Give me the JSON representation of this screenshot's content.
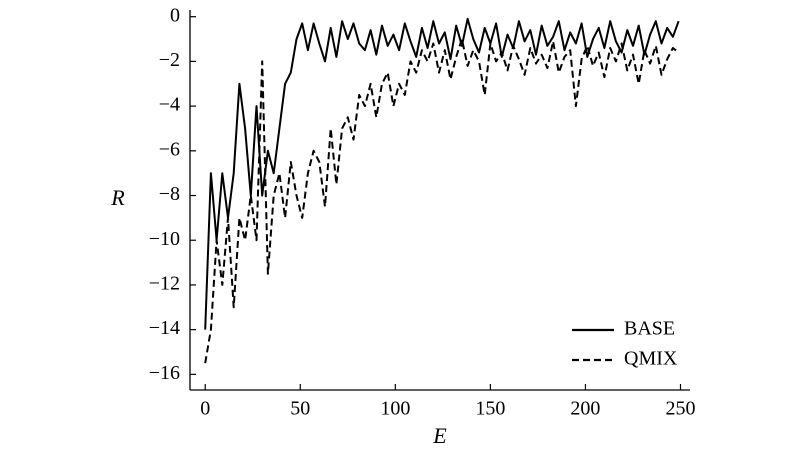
{
  "chart_data": {
    "type": "line",
    "xlabel": "E",
    "ylabel": "R",
    "x": [
      0,
      3,
      6,
      9,
      12,
      15,
      18,
      21,
      24,
      27,
      30,
      33,
      36,
      39,
      42,
      45,
      48,
      51,
      54,
      57,
      60,
      63,
      66,
      69,
      72,
      75,
      78,
      81,
      84,
      87,
      90,
      93,
      96,
      99,
      102,
      105,
      108,
      111,
      114,
      117,
      120,
      123,
      126,
      129,
      132,
      135,
      138,
      141,
      144,
      147,
      150,
      153,
      156,
      159,
      162,
      165,
      168,
      171,
      174,
      177,
      180,
      183,
      186,
      189,
      192,
      195,
      198,
      201,
      204,
      207,
      210,
      213,
      216,
      219,
      222,
      225,
      228,
      231,
      234,
      237,
      240,
      243,
      246,
      249
    ],
    "series": [
      {
        "name": "BASE",
        "color": "#000000",
        "dash": "solid",
        "values": [
          -14,
          -7,
          -10,
          -7,
          -9,
          -7,
          -3,
          -5,
          -8,
          -4,
          -8,
          -6,
          -7,
          -5,
          -3,
          -2.5,
          -1,
          -0.3,
          -1.5,
          -0.3,
          -1.2,
          -2,
          -0.5,
          -1.8,
          -0.2,
          -1,
          -0.3,
          -1.2,
          -1.5,
          -0.6,
          -1.7,
          -0.4,
          -1.3,
          -0.8,
          -1.5,
          -0.3,
          -1.1,
          -1.8,
          -0.5,
          -1.4,
          -0.2,
          -1.2,
          -0.7,
          -1.9,
          -0.4,
          -1.3,
          -0.1,
          -1,
          -1.6,
          -0.5,
          -1.2,
          -0.3,
          -1.8,
          -0.8,
          -1.4,
          -0.2,
          -1.1,
          -0.6,
          -1.7,
          -0.4,
          -1.3,
          -0.9,
          -0.2,
          -1.5,
          -0.7,
          -1.2,
          -0.3,
          -1.8,
          -1,
          -0.5,
          -1.4,
          -0.2,
          -1.1,
          -1.6,
          -0.6,
          -1.3,
          -0.4,
          -1.7,
          -0.8,
          -0.2,
          -1.2,
          -0.5,
          -0.9,
          -0.2
        ]
      },
      {
        "name": "QMIX",
        "color": "#000000",
        "dash": "dashed",
        "values": [
          -15.5,
          -14,
          -10,
          -12,
          -9,
          -13,
          -9,
          -10,
          -8,
          -10,
          -2,
          -11.5,
          -8,
          -7,
          -9,
          -6.5,
          -8,
          -9,
          -7,
          -6,
          -6.5,
          -8.5,
          -5,
          -7.5,
          -5,
          -4.5,
          -5.5,
          -3.5,
          -4,
          -3,
          -4.5,
          -3,
          -2.5,
          -4,
          -3,
          -3.5,
          -2,
          -2.5,
          -1.5,
          -2,
          -1.2,
          -2.5,
          -1.5,
          -2.8,
          -1.8,
          -1,
          -2.2,
          -1.5,
          -2,
          -3.5,
          -1.2,
          -2,
          -1.6,
          -2.4,
          -1.3,
          -1.9,
          -2.6,
          -1.4,
          -2.1,
          -1.7,
          -2.3,
          -1.1,
          -2.5,
          -1.8,
          -1.5,
          -4,
          -1.9,
          -1.3,
          -2.2,
          -1.6,
          -2.7,
          -1.4,
          -2,
          -1.2,
          -2.4,
          -1.7,
          -3,
          -1.5,
          -2.1,
          -1.3,
          -2.6,
          -1.9,
          -1.4,
          -1.6
        ]
      }
    ],
    "xlim": [
      -8,
      255
    ],
    "ylim": [
      -16.7,
      0.3
    ],
    "xticks": [
      0,
      50,
      100,
      150,
      200,
      250
    ],
    "yticks": [
      0,
      {
        "value": -2,
        "label": "−2"
      },
      {
        "value": -4,
        "label": "−4"
      },
      {
        "value": -6,
        "label": "−6"
      },
      {
        "value": -8,
        "label": "−8"
      },
      {
        "value": -10,
        "label": "−10"
      },
      {
        "value": -12,
        "label": "−12"
      },
      {
        "value": -14,
        "label": "−14"
      },
      {
        "value": -16,
        "label": "−16"
      }
    ],
    "grid": false,
    "legend": "lower right"
  }
}
